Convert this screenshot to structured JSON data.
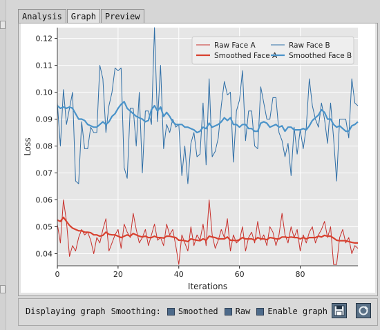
{
  "tabs": [
    {
      "label": "Analysis",
      "active": false
    },
    {
      "label": "Graph",
      "active": true
    },
    {
      "label": "Preview",
      "active": false
    }
  ],
  "chart_data": {
    "type": "line",
    "xlabel": "Iterations",
    "ylabel": "Loss",
    "xlim": [
      0,
      99
    ],
    "ylim": [
      0.0355,
      0.124
    ],
    "xticks": [
      0,
      20,
      40,
      60,
      80
    ],
    "yticks": [
      0.04,
      0.05,
      0.06,
      0.07,
      0.08,
      0.09,
      0.1,
      0.11,
      0.12
    ],
    "ytick_labels": [
      "0.04",
      "0.05",
      "0.06",
      "0.07",
      "0.08",
      "0.09",
      "0.10",
      "0.11",
      "0.12"
    ],
    "grid": true,
    "legend_position": "top-right",
    "x": [
      0,
      1,
      2,
      3,
      4,
      5,
      6,
      7,
      8,
      9,
      10,
      11,
      12,
      13,
      14,
      15,
      16,
      17,
      18,
      19,
      20,
      21,
      22,
      23,
      24,
      25,
      26,
      27,
      28,
      29,
      30,
      31,
      32,
      33,
      34,
      35,
      36,
      37,
      38,
      39,
      40,
      41,
      42,
      43,
      44,
      45,
      46,
      47,
      48,
      49,
      50,
      51,
      52,
      53,
      54,
      55,
      56,
      57,
      58,
      59,
      60,
      61,
      62,
      63,
      64,
      65,
      66,
      67,
      68,
      69,
      70,
      71,
      72,
      73,
      74,
      75,
      76,
      77,
      78,
      79,
      80,
      81,
      82,
      83,
      84,
      85,
      86,
      87,
      88,
      89,
      90,
      91,
      92,
      93,
      94,
      95,
      96,
      97,
      98,
      99
    ],
    "series": [
      {
        "name": "Raw Face A",
        "color": "#c8302c",
        "width": 1,
        "values": [
          0.051,
          0.044,
          0.06,
          0.052,
          0.039,
          0.043,
          0.041,
          0.046,
          0.049,
          0.047,
          0.048,
          0.045,
          0.04,
          0.046,
          0.044,
          0.049,
          0.053,
          0.041,
          0.044,
          0.047,
          0.049,
          0.042,
          0.051,
          0.048,
          0.046,
          0.055,
          0.049,
          0.044,
          0.046,
          0.049,
          0.043,
          0.047,
          0.051,
          0.045,
          0.046,
          0.043,
          0.051,
          0.047,
          0.049,
          0.043,
          0.036,
          0.047,
          0.044,
          0.041,
          0.05,
          0.043,
          0.047,
          0.045,
          0.051,
          0.043,
          0.06,
          0.047,
          0.042,
          0.045,
          0.049,
          0.046,
          0.053,
          0.041,
          0.047,
          0.044,
          0.045,
          0.05,
          0.041,
          0.046,
          0.048,
          0.044,
          0.052,
          0.045,
          0.047,
          0.043,
          0.05,
          0.048,
          0.043,
          0.047,
          0.055,
          0.047,
          0.044,
          0.05,
          0.046,
          0.049,
          0.041,
          0.047,
          0.044,
          0.048,
          0.05,
          0.044,
          0.047,
          0.049,
          0.052,
          0.046,
          0.05,
          0.036,
          0.036,
          0.046,
          0.049,
          0.044,
          0.046,
          0.04,
          0.043,
          0.042
        ]
      },
      {
        "name": "Raw Face B",
        "color": "#2e6ea6",
        "width": 1,
        "values": [
          0.096,
          0.08,
          0.101,
          0.088,
          0.094,
          0.1,
          0.067,
          0.066,
          0.089,
          0.079,
          0.079,
          0.087,
          0.085,
          0.085,
          0.11,
          0.105,
          0.085,
          0.095,
          0.1,
          0.109,
          0.108,
          0.109,
          0.072,
          0.068,
          0.094,
          0.094,
          0.08,
          0.1,
          0.07,
          0.093,
          0.093,
          0.088,
          0.124,
          0.089,
          0.11,
          0.079,
          0.088,
          0.085,
          0.09,
          0.087,
          0.088,
          0.069,
          0.08,
          0.066,
          0.081,
          0.085,
          0.076,
          0.077,
          0.096,
          0.073,
          0.105,
          0.076,
          0.078,
          0.083,
          0.095,
          0.104,
          0.099,
          0.1,
          0.074,
          0.093,
          0.097,
          0.108,
          0.082,
          0.093,
          0.093,
          0.08,
          0.079,
          0.102,
          0.096,
          0.09,
          0.09,
          0.098,
          0.098,
          0.085,
          0.082,
          0.076,
          0.081,
          0.069,
          0.087,
          0.077,
          0.086,
          0.079,
          0.087,
          0.105,
          0.095,
          0.09,
          0.087,
          0.096,
          0.09,
          0.081,
          0.096,
          0.083,
          0.067,
          0.09,
          0.09,
          0.09,
          0.083,
          0.105,
          0.096,
          0.095
        ]
      },
      {
        "name": "Smoothed Face A",
        "color": "#d8412f",
        "width": 2.2,
        "values": [
          0.0525,
          0.052,
          0.0535,
          0.052,
          0.0505,
          0.0495,
          0.049,
          0.0485,
          0.0485,
          0.048,
          0.048,
          0.0478,
          0.047,
          0.047,
          0.0465,
          0.0468,
          0.048,
          0.0472,
          0.047,
          0.047,
          0.0465,
          0.046,
          0.0465,
          0.047,
          0.0465,
          0.0475,
          0.047,
          0.0465,
          0.0462,
          0.0465,
          0.046,
          0.046,
          0.0465,
          0.046,
          0.046,
          0.0458,
          0.0465,
          0.0465,
          0.0462,
          0.046,
          0.045,
          0.045,
          0.0448,
          0.0445,
          0.0455,
          0.0452,
          0.045,
          0.0448,
          0.0455,
          0.045,
          0.0465,
          0.0462,
          0.046,
          0.0455,
          0.0455,
          0.0455,
          0.0462,
          0.045,
          0.045,
          0.0448,
          0.0452,
          0.046,
          0.0455,
          0.0455,
          0.0455,
          0.045,
          0.046,
          0.0455,
          0.0455,
          0.0452,
          0.046,
          0.0458,
          0.0455,
          0.0455,
          0.0462,
          0.0462,
          0.046,
          0.0462,
          0.046,
          0.046,
          0.0455,
          0.046,
          0.0455,
          0.046,
          0.046,
          0.046,
          0.0465,
          0.0462,
          0.0468,
          0.0465,
          0.0465,
          0.0458,
          0.045,
          0.0448,
          0.0448,
          0.0448,
          0.0445,
          0.0442,
          0.044,
          0.044
        ]
      },
      {
        "name": "Smoothed Face B",
        "color": "#4a93c9",
        "width": 2.2,
        "values": [
          0.095,
          0.094,
          0.0945,
          0.094,
          0.0945,
          0.094,
          0.092,
          0.09,
          0.09,
          0.0895,
          0.088,
          0.0875,
          0.087,
          0.087,
          0.088,
          0.089,
          0.088,
          0.089,
          0.091,
          0.092,
          0.094,
          0.0955,
          0.0965,
          0.094,
          0.093,
          0.092,
          0.091,
          0.0905,
          0.09,
          0.089,
          0.0895,
          0.0935,
          0.095,
          0.093,
          0.0945,
          0.091,
          0.0925,
          0.091,
          0.089,
          0.088,
          0.088,
          0.088,
          0.087,
          0.087,
          0.0865,
          0.086,
          0.085,
          0.0855,
          0.087,
          0.0865,
          0.0885,
          0.087,
          0.0875,
          0.088,
          0.089,
          0.0905,
          0.0895,
          0.0905,
          0.088,
          0.088,
          0.087,
          0.088,
          0.088,
          0.0865,
          0.0865,
          0.0855,
          0.0855,
          0.0885,
          0.089,
          0.0885,
          0.087,
          0.0875,
          0.088,
          0.087,
          0.0875,
          0.0855,
          0.087,
          0.087,
          0.086,
          0.086,
          0.086,
          0.0865,
          0.086,
          0.0875,
          0.0895,
          0.0905,
          0.0915,
          0.0935,
          0.0925,
          0.09,
          0.09,
          0.088,
          0.087,
          0.0875,
          0.0865,
          0.0855,
          0.0855,
          0.0875,
          0.088,
          0.089
        ]
      }
    ],
    "legend_order": [
      0,
      2,
      1,
      3
    ]
  },
  "bottom_bar": {
    "status_text": "Displaying graph",
    "smoothing_label": "Smoothing:",
    "options": [
      "Smoothed",
      "Raw",
      "Enable graph"
    ]
  }
}
